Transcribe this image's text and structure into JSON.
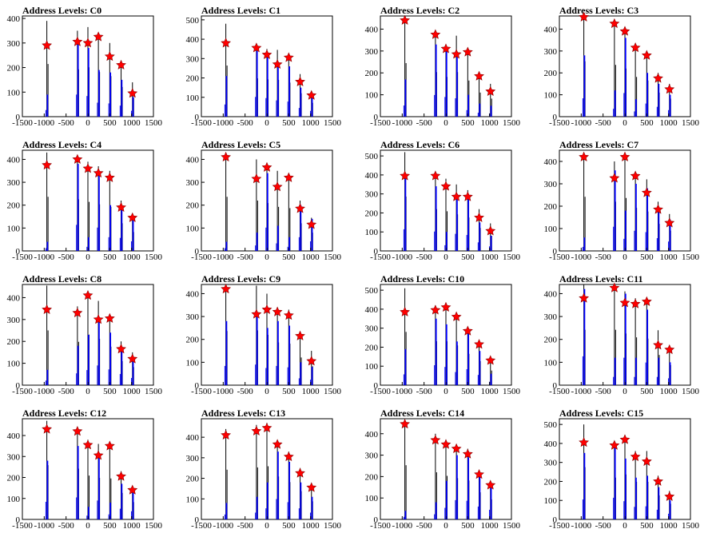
{
  "chart_data": [
    {
      "type": "histogram",
      "title": "Address Levels: C0",
      "xlim": [
        -1500,
        1500
      ],
      "ylim": [
        0,
        410
      ],
      "xticks": [
        "-1500",
        "-1000",
        "-500",
        "0",
        "500",
        "1000",
        "1500"
      ],
      "yticks": [
        "0",
        "100",
        "200",
        "300",
        "400"
      ],
      "peaks_x": [
        -940,
        -240,
        0,
        240,
        500,
        760,
        1020
      ],
      "black_heights": [
        390,
        350,
        365,
        330,
        300,
        220,
        140
      ],
      "blue_heights": [
        90,
        300,
        280,
        190,
        180,
        150,
        80
      ],
      "marker_values": [
        290,
        305,
        300,
        325,
        245,
        210,
        95
      ]
    },
    {
      "type": "histogram",
      "title": "Address Levels: C1",
      "xlim": [
        -1500,
        1500
      ],
      "ylim": [
        0,
        520
      ],
      "xticks": [
        "-1500",
        "-1000",
        "-500",
        "0",
        "500",
        "1000",
        "1500"
      ],
      "yticks": [
        "0",
        "100",
        "200",
        "300",
        "400",
        "500"
      ],
      "peaks_x": [
        -940,
        -240,
        0,
        240,
        500,
        760,
        1020
      ],
      "black_heights": [
        480,
        360,
        350,
        345,
        320,
        220,
        130
      ],
      "blue_heights": [
        210,
        340,
        320,
        280,
        260,
        150,
        100
      ],
      "marker_values": [
        380,
        355,
        320,
        270,
        305,
        180,
        110
      ]
    },
    {
      "type": "histogram",
      "title": "Address Levels: C2",
      "xlim": [
        -1500,
        1500
      ],
      "ylim": [
        0,
        460
      ],
      "xticks": [
        "-1500",
        "-1000",
        "-500",
        "0",
        "500",
        "1000",
        "1500"
      ],
      "yticks": [
        "0",
        "100",
        "200",
        "300",
        "400"
      ],
      "peaks_x": [
        -940,
        -240,
        0,
        240,
        500,
        760,
        1020
      ],
      "black_heights": [
        445,
        370,
        330,
        370,
        300,
        200,
        150
      ],
      "blue_heights": [
        170,
        330,
        300,
        280,
        100,
        60,
        50
      ],
      "marker_values": [
        440,
        375,
        310,
        285,
        295,
        185,
        115
      ]
    },
    {
      "type": "histogram",
      "title": "Address Levels: C3",
      "xlim": [
        -1500,
        1500
      ],
      "ylim": [
        0,
        460
      ],
      "xticks": [
        "-1500",
        "-1000",
        "-500",
        "0",
        "500",
        "1000",
        "1500"
      ],
      "yticks": [
        "0",
        "100",
        "200",
        "300",
        "400"
      ],
      "peaks_x": [
        -940,
        -240,
        0,
        240,
        500,
        760,
        1020
      ],
      "black_heights": [
        460,
        430,
        400,
        330,
        300,
        200,
        150
      ],
      "blue_heights": [
        280,
        120,
        360,
        80,
        200,
        150,
        100
      ],
      "marker_values": [
        455,
        425,
        390,
        315,
        280,
        175,
        125
      ]
    },
    {
      "type": "histogram",
      "title": "Address Levels: C4",
      "xlim": [
        -1500,
        1500
      ],
      "ylim": [
        0,
        440
      ],
      "xticks": [
        "-1500",
        "-1000",
        "-500",
        "0",
        "500",
        "1000",
        "1500"
      ],
      "yticks": [
        "0",
        "100",
        "200",
        "300",
        "400"
      ],
      "peaks_x": [
        -940,
        -240,
        0,
        240,
        500,
        760,
        1020
      ],
      "black_heights": [
        430,
        410,
        390,
        370,
        350,
        220,
        150
      ],
      "blue_heights": [
        40,
        380,
        60,
        340,
        200,
        190,
        140
      ],
      "marker_values": [
        375,
        400,
        360,
        340,
        320,
        190,
        145
      ]
    },
    {
      "type": "histogram",
      "title": "Address Levels: C5",
      "xlim": [
        -1500,
        1500
      ],
      "ylim": [
        0,
        440
      ],
      "xticks": [
        "-1500",
        "-1000",
        "-500",
        "0",
        "500",
        "1000",
        "1500"
      ],
      "yticks": [
        "0",
        "100",
        "200",
        "300",
        "400"
      ],
      "peaks_x": [
        -940,
        -240,
        0,
        240,
        500,
        760,
        1020
      ],
      "black_heights": [
        430,
        400,
        380,
        350,
        340,
        220,
        145
      ],
      "blue_heights": [
        40,
        80,
        340,
        110,
        60,
        200,
        140
      ],
      "marker_values": [
        410,
        315,
        365,
        280,
        320,
        185,
        115
      ]
    },
    {
      "type": "histogram",
      "title": "Address Levels: C6",
      "xlim": [
        -1500,
        1500
      ],
      "ylim": [
        0,
        530
      ],
      "xticks": [
        "-1500",
        "-1000",
        "-500",
        "0",
        "500",
        "1000",
        "1500"
      ],
      "yticks": [
        "0",
        "100",
        "200",
        "300",
        "400",
        "500"
      ],
      "peaks_x": [
        -940,
        -240,
        0,
        240,
        500,
        760,
        1020
      ],
      "black_heights": [
        520,
        400,
        380,
        350,
        320,
        220,
        145
      ],
      "blue_heights": [
        380,
        340,
        100,
        300,
        280,
        150,
        80
      ],
      "marker_values": [
        395,
        395,
        340,
        285,
        285,
        175,
        105
      ]
    },
    {
      "type": "histogram",
      "title": "Address Levels: C7",
      "xlim": [
        -1500,
        1500
      ],
      "ylim": [
        0,
        450
      ],
      "xticks": [
        "-1500",
        "-1000",
        "-500",
        "0",
        "500",
        "1000",
        "1500"
      ],
      "yticks": [
        "0",
        "100",
        "200",
        "300",
        "400"
      ],
      "peaks_x": [
        -940,
        -240,
        0,
        240,
        500,
        760,
        1020
      ],
      "black_heights": [
        440,
        400,
        430,
        350,
        320,
        220,
        165
      ],
      "blue_heights": [
        60,
        360,
        180,
        300,
        280,
        190,
        140
      ],
      "marker_values": [
        420,
        325,
        420,
        335,
        260,
        185,
        125
      ]
    },
    {
      "type": "histogram",
      "title": "Address Levels: C8",
      "xlim": [
        -1500,
        1500
      ],
      "ylim": [
        0,
        460
      ],
      "xticks": [
        "-1500",
        "-1000",
        "-500",
        "0",
        "500",
        "1000",
        "1500"
      ],
      "yticks": [
        "0",
        "100",
        "200",
        "300",
        "400"
      ],
      "peaks_x": [
        -940,
        -240,
        0,
        240,
        500,
        760,
        1020
      ],
      "black_heights": [
        455,
        360,
        420,
        385,
        320,
        200,
        150
      ],
      "blue_heights": [
        70,
        180,
        230,
        300,
        240,
        170,
        110
      ],
      "marker_values": [
        345,
        330,
        410,
        300,
        305,
        165,
        120
      ]
    },
    {
      "type": "histogram",
      "title": "Address Levels: C9",
      "xlim": [
        -1500,
        1500
      ],
      "ylim": [
        0,
        440
      ],
      "xticks": [
        "-1500",
        "-1000",
        "-500",
        "0",
        "500",
        "1000",
        "1500"
      ],
      "yticks": [
        "0",
        "100",
        "200",
        "300",
        "400"
      ],
      "peaks_x": [
        -940,
        -240,
        0,
        240,
        500,
        760,
        1020
      ],
      "black_heights": [
        430,
        435,
        400,
        340,
        330,
        220,
        150
      ],
      "blue_heights": [
        280,
        300,
        250,
        280,
        260,
        100,
        80
      ],
      "marker_values": [
        420,
        310,
        330,
        320,
        305,
        215,
        105
      ]
    },
    {
      "type": "histogram",
      "title": "Address Levels: C10",
      "xlim": [
        -1500,
        1500
      ],
      "ylim": [
        0,
        530
      ],
      "xticks": [
        "-1500",
        "-1000",
        "-500",
        "0",
        "500",
        "1000",
        "1500"
      ],
      "yticks": [
        "0",
        "100",
        "200",
        "300",
        "400",
        "500"
      ],
      "peaks_x": [
        -940,
        -240,
        0,
        240,
        500,
        760,
        1020
      ],
      "black_heights": [
        510,
        420,
        420,
        380,
        300,
        230,
        140
      ],
      "blue_heights": [
        190,
        350,
        320,
        230,
        280,
        180,
        60
      ],
      "marker_values": [
        385,
        395,
        410,
        360,
        285,
        215,
        130
      ]
    },
    {
      "type": "histogram",
      "title": "Address Levels: C11",
      "xlim": [
        -1500,
        1500
      ],
      "ylim": [
        0,
        440
      ],
      "xticks": [
        "-1500",
        "-1000",
        "-500",
        "0",
        "500",
        "1000",
        "1500"
      ],
      "yticks": [
        "0",
        "100",
        "200",
        "300",
        "400"
      ],
      "peaks_x": [
        -940,
        -240,
        0,
        240,
        500,
        760,
        1020
      ],
      "black_heights": [
        440,
        440,
        410,
        380,
        370,
        240,
        160
      ],
      "blue_heights": [
        420,
        120,
        400,
        120,
        330,
        120,
        100
      ],
      "marker_values": [
        380,
        425,
        360,
        355,
        365,
        175,
        155
      ]
    },
    {
      "type": "histogram",
      "title": "Address Levels: C12",
      "xlim": [
        -1500,
        1500
      ],
      "ylim": [
        0,
        480
      ],
      "xticks": [
        "-1500",
        "-1000",
        "-500",
        "0",
        "500",
        "1000",
        "1500"
      ],
      "yticks": [
        "0",
        "100",
        "200",
        "300",
        "400"
      ],
      "peaks_x": [
        -940,
        -240,
        0,
        240,
        500,
        760,
        1020
      ],
      "black_heights": [
        470,
        440,
        380,
        360,
        355,
        230,
        150
      ],
      "blue_heights": [
        280,
        350,
        60,
        300,
        80,
        170,
        130
      ],
      "marker_values": [
        430,
        420,
        355,
        305,
        350,
        205,
        140
      ]
    },
    {
      "type": "histogram",
      "title": "Address Levels: C13",
      "xlim": [
        -1500,
        1500
      ],
      "ylim": [
        0,
        490
      ],
      "xticks": [
        "-1500",
        "-1000",
        "-500",
        "0",
        "500",
        "1000",
        "1500"
      ],
      "yticks": [
        "0",
        "100",
        "200",
        "300",
        "400"
      ],
      "peaks_x": [
        -940,
        -240,
        0,
        240,
        500,
        760,
        1020
      ],
      "black_heights": [
        440,
        460,
        470,
        380,
        330,
        250,
        160
      ],
      "blue_heights": [
        80,
        110,
        180,
        330,
        280,
        180,
        110
      ],
      "marker_values": [
        410,
        430,
        445,
        365,
        305,
        225,
        155
      ]
    },
    {
      "type": "histogram",
      "title": "Address Levels: C14",
      "xlim": [
        -1500,
        1500
      ],
      "ylim": [
        0,
        470
      ],
      "xticks": [
        "-1500",
        "-1000",
        "-500",
        "0",
        "500",
        "1000",
        "1500"
      ],
      "yticks": [
        "0",
        "100",
        "200",
        "300",
        "400"
      ],
      "peaks_x": [
        -940,
        -240,
        0,
        240,
        500,
        760,
        1020
      ],
      "black_heights": [
        460,
        400,
        370,
        350,
        330,
        230,
        170
      ],
      "blue_heights": [
        40,
        80,
        180,
        300,
        290,
        200,
        150
      ],
      "marker_values": [
        445,
        370,
        350,
        330,
        305,
        210,
        160
      ]
    },
    {
      "type": "histogram",
      "title": "Address Levels: C15",
      "xlim": [
        -1500,
        1500
      ],
      "ylim": [
        0,
        530
      ],
      "xticks": [
        "-1500",
        "-1000",
        "-500",
        "0",
        "500",
        "1000",
        "1500"
      ],
      "yticks": [
        "0",
        "100",
        "200",
        "300",
        "400",
        "500"
      ],
      "peaks_x": [
        -940,
        -240,
        0,
        240,
        500,
        760,
        1020
      ],
      "black_heights": [
        500,
        400,
        430,
        360,
        360,
        230,
        150
      ],
      "blue_heights": [
        350,
        380,
        320,
        220,
        230,
        170,
        100
      ],
      "marker_values": [
        405,
        390,
        420,
        330,
        305,
        200,
        120
      ]
    }
  ],
  "colors": {
    "hist_black": "#000000",
    "hist_blue": "#0000ff",
    "marker_fill": "#ff0000",
    "marker_stroke": "#8b0000",
    "frame": "#000000"
  }
}
